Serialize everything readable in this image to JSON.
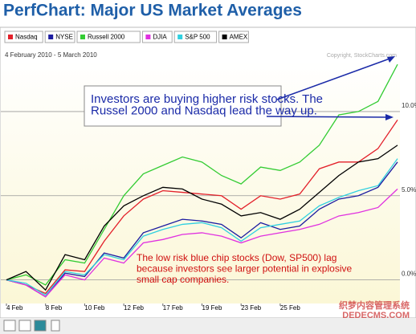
{
  "chart_data": {
    "type": "line",
    "title": "PerfChart: Major US Market Averages",
    "subtitle": "4 February 2010 - 5 March 2010",
    "copyright": "Copyright, StockCharts.com",
    "categories": [
      "4 Feb",
      null,
      "8 Feb",
      null,
      "10 Feb",
      null,
      "12 Feb",
      null,
      "17 Feb",
      null,
      "19 Feb",
      null,
      "23 Feb",
      null,
      "25 Feb",
      null,
      null,
      null,
      null,
      null,
      null
    ],
    "series": [
      {
        "name": "Nasdaq",
        "color": "#e3202a",
        "values": [
          0,
          -0.3,
          -0.8,
          0.6,
          0.5,
          2.3,
          3.8,
          4.8,
          5.3,
          5.2,
          5.1,
          5.0,
          4.2,
          5.0,
          4.8,
          5.1,
          6.6,
          7.0,
          7.0,
          7.8,
          9.5
        ]
      },
      {
        "name": "NYSE",
        "color": "#1c1ca0",
        "values": [
          0,
          -0.3,
          -1.0,
          0.4,
          0.2,
          1.6,
          1.3,
          2.8,
          3.2,
          3.6,
          3.5,
          3.3,
          2.5,
          3.4,
          3.0,
          3.2,
          4.2,
          4.8,
          5.0,
          5.5,
          7.0
        ]
      },
      {
        "name": "Russell 2000",
        "color": "#33cc33",
        "values": [
          0,
          0.3,
          -0.3,
          1.2,
          1.0,
          3.0,
          5.0,
          6.3,
          6.8,
          7.3,
          7.0,
          6.2,
          5.7,
          6.7,
          6.5,
          7.0,
          8.0,
          9.8,
          10.0,
          10.6,
          12.8
        ]
      },
      {
        "name": "DJIA",
        "color": "#e030e0",
        "values": [
          0,
          -0.3,
          -1.0,
          0.3,
          0.0,
          1.3,
          1.0,
          2.2,
          2.4,
          2.7,
          2.8,
          2.6,
          2.2,
          2.6,
          2.8,
          3.0,
          3.3,
          3.8,
          4.0,
          4.3,
          5.4
        ]
      },
      {
        "name": "S&P 500",
        "color": "#30d0e0",
        "values": [
          0,
          -0.2,
          -0.9,
          0.5,
          0.3,
          1.5,
          1.2,
          2.6,
          3.0,
          3.3,
          3.4,
          3.1,
          2.3,
          3.1,
          3.3,
          3.5,
          4.4,
          4.9,
          5.3,
          5.6,
          7.2
        ]
      },
      {
        "name": "AMEX",
        "color": "#000000",
        "values": [
          0,
          0.5,
          -0.6,
          1.5,
          1.2,
          3.2,
          4.4,
          5.0,
          5.5,
          5.4,
          4.8,
          4.5,
          3.8,
          4.0,
          3.6,
          4.2,
          5.2,
          6.2,
          7.0,
          7.2,
          8.0
        ]
      }
    ],
    "ylim": [
      -1.4,
      13
    ],
    "yticks": [
      {
        "value": 0,
        "label": "0.0%"
      },
      {
        "value": 5,
        "label": "5.0%"
      },
      {
        "value": 10,
        "label": "10.0%"
      }
    ],
    "grid": true,
    "annotations": [
      {
        "lines": [
          "Investors are buying higher risk stocks. The",
          "Russel 2000 and Nasdaq lead the way up."
        ],
        "color": "#1a2aa8"
      },
      {
        "lines": [
          "The low risk blue chip stocks (Dow, SP500) lag",
          "because investors see larger potential in explosive",
          "small cap companies."
        ],
        "color": "#d01010"
      }
    ],
    "watermark": [
      "织梦内容管理系统",
      "DEDECMS.COM"
    ]
  }
}
